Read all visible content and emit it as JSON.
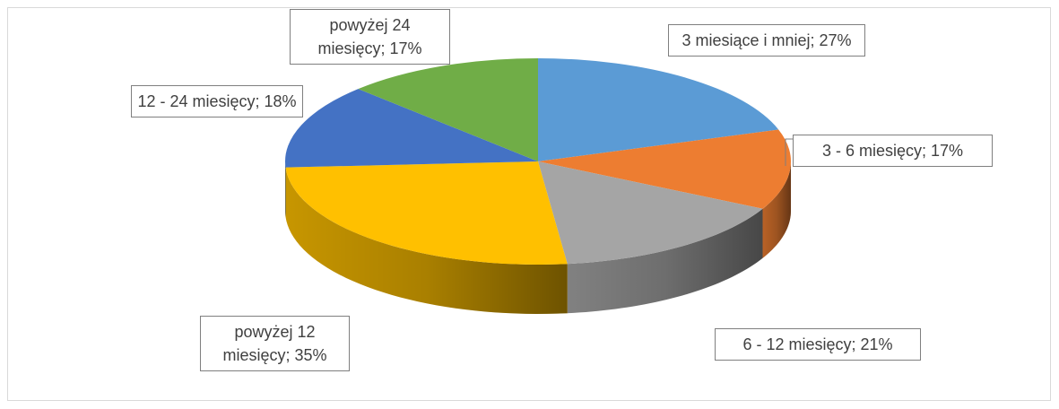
{
  "chart_data": {
    "type": "pie3d",
    "values": [
      27,
      17,
      21,
      35,
      18,
      17
    ],
    "value_labels": [
      "3 miesiące i mniej; 27%",
      "3 - 6 miesięcy; 17%",
      "6 - 12 miesięcy; 21%",
      "powyżej 12 miesięcy; 35%",
      "12 - 24 miesięcy; 18%",
      "powyżej 24 miesięcy; 17%"
    ],
    "colors": [
      "#5b9bd5",
      "#ed7d31",
      "#a5a5a5",
      "#ffc000",
      "#4472c4",
      "#70ad47"
    ]
  }
}
